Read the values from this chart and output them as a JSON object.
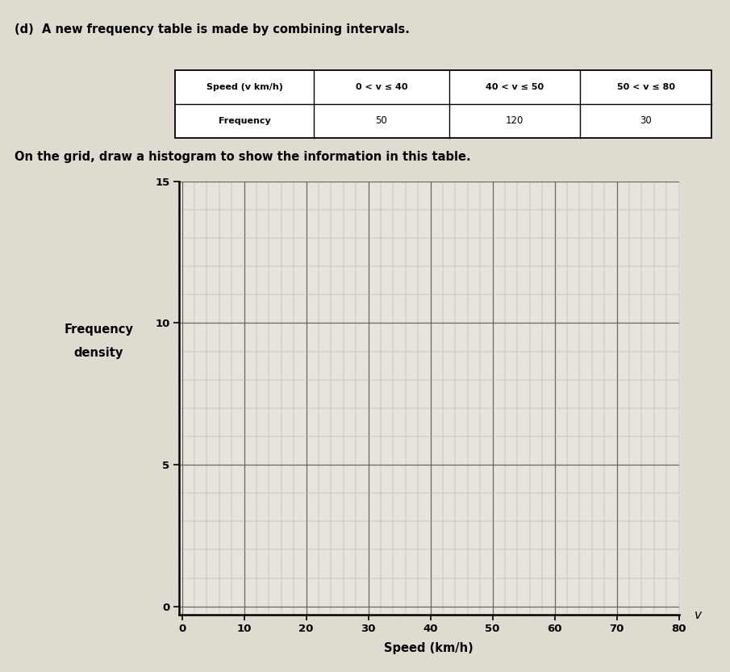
{
  "title_line1": "(d)  A new frequency table is made by combining intervals.",
  "table_row1": [
    "Speed (v km/h)",
    "0 < v ≤ 40",
    "40 < v ≤ 50",
    "50 < v ≤ 80"
  ],
  "table_row2_label": "Frequency",
  "frequencies": [
    50,
    120,
    30
  ],
  "subtitle": "On the grid, draw a histogram to show the information in this table.",
  "ylabel_line1": "Frequency",
  "ylabel_line2": "density",
  "xlabel": "Speed (km/h)",
  "xticks": [
    0,
    10,
    20,
    30,
    40,
    50,
    60,
    70,
    80
  ],
  "yticks": [
    0,
    5,
    10,
    15
  ],
  "grid_bg_color": "#e8e4dc",
  "paper_color": "#e0dbd0",
  "figsize": [
    9.05,
    8.33
  ],
  "dpi": 100
}
